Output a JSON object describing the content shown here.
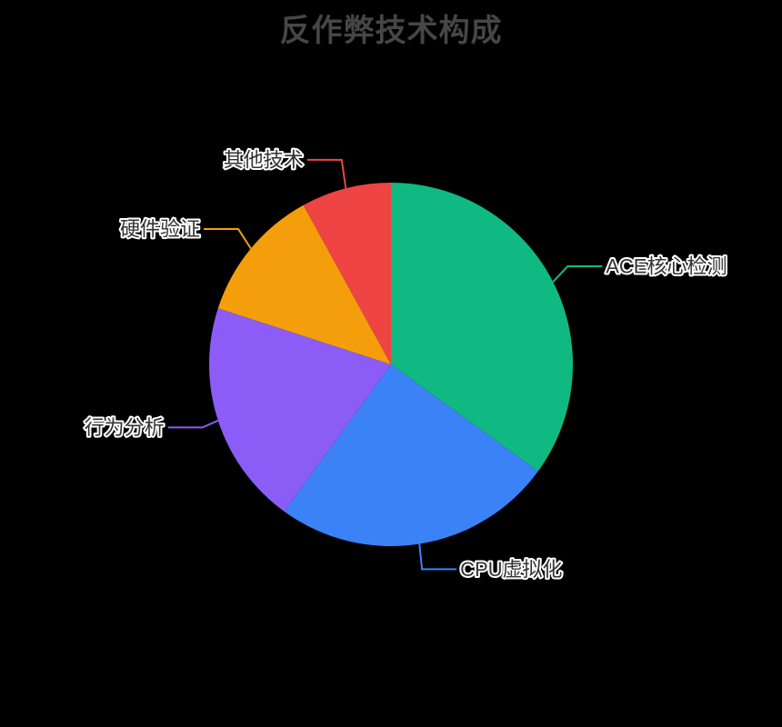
{
  "background_color": "#000000",
  "chart_data": {
    "type": "pie",
    "title": "反作弊技术构成",
    "title_color": "#464646",
    "label_color": "#333333",
    "label_outline_color": "#ffffff",
    "legend": "none",
    "start_angle_deg": 90,
    "direction": "clockwise",
    "items": [
      {
        "name": "ACE核心检测",
        "value": 35,
        "color": "#10B981"
      },
      {
        "name": "CPU虚拟化",
        "value": 25,
        "color": "#3B82F6"
      },
      {
        "name": "行为分析",
        "value": 20,
        "color": "#8B5CF6"
      },
      {
        "name": "硬件验证",
        "value": 12,
        "color": "#F59E0B"
      },
      {
        "name": "其他技术",
        "value": 8,
        "color": "#EF4444"
      }
    ],
    "unit": "%"
  }
}
